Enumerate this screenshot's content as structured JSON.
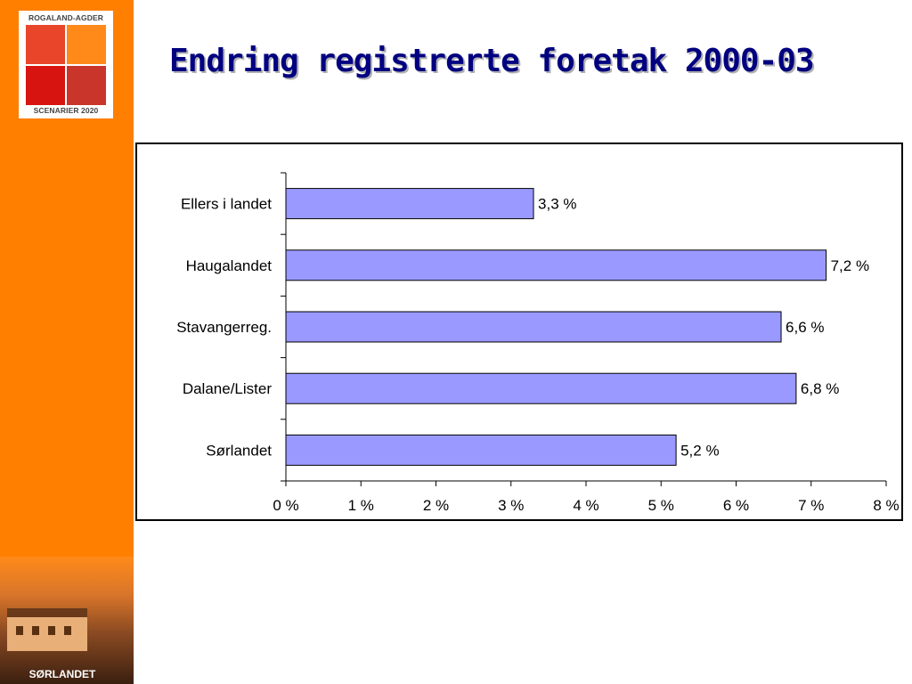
{
  "slide": {
    "title": "Endring registrerte foretak 2000-03"
  },
  "logo": {
    "top_text": "ROGALAND-AGDER",
    "bottom_text": "SCENARIER 2020"
  },
  "sidebar": {
    "photo_label": "SØRLANDET"
  },
  "chart_data": {
    "type": "bar",
    "orientation": "horizontal",
    "categories": [
      "Ellers i landet",
      "Haugalandet",
      "Stavangerreg.",
      "Dalane/Lister",
      "Sørlandet"
    ],
    "values": [
      3.3,
      7.2,
      6.6,
      6.8,
      5.2
    ],
    "value_labels": [
      "3,3 %",
      "7,2 %",
      "6,6 %",
      "6,8 %",
      "5,2 %"
    ],
    "xlim": [
      0,
      8
    ],
    "x_ticks": [
      "0 %",
      "1 %",
      "2 %",
      "3 %",
      "4 %",
      "5 %",
      "6 %",
      "7 %",
      "8 %"
    ],
    "bar_color": "#9999ff",
    "grid": false,
    "title": "",
    "xlabel": "",
    "ylabel": ""
  }
}
